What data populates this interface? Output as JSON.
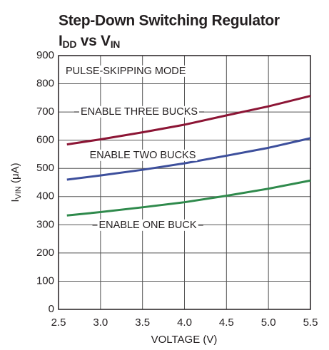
{
  "chart_data": {
    "type": "line",
    "title": "Step-Down Switching Regulator",
    "subtitle_parts": [
      "I",
      "DD",
      " vs V",
      "IN"
    ],
    "ylabel_parts": [
      "I",
      "VIN",
      " (μA)"
    ],
    "xlabel": "VOLTAGE (V)",
    "annotations": [
      "PULSE-SKIPPING MODE"
    ],
    "x": [
      2.6,
      3.0,
      3.5,
      4.0,
      4.5,
      5.0,
      5.5
    ],
    "series": [
      {
        "name": "ENABLE THREE BUCKS",
        "color": "#8c1535",
        "values": [
          585,
          603,
          628,
          655,
          688,
          720,
          757
        ]
      },
      {
        "name": "ENABLE TWO BUCKS",
        "color": "#3d4f9c",
        "values": [
          460,
          475,
          495,
          518,
          545,
          573,
          607
        ]
      },
      {
        "name": "ENABLE ONE BUCK",
        "color": "#2f8a4c",
        "values": [
          333,
          345,
          362,
          380,
          403,
          428,
          457
        ]
      }
    ],
    "xlim": [
      2.5,
      5.5
    ],
    "xticks": [
      2.5,
      {
        "value": 3,
        "label": "3.0"
      },
      3.5,
      {
        "value": 4,
        "label": "4.0"
      },
      4.5,
      {
        "value": 5,
        "label": "5.0"
      },
      5.5
    ],
    "ylim": [
      0,
      900
    ],
    "yticks": [
      0,
      100,
      200,
      300,
      400,
      500,
      600,
      700,
      800,
      900
    ],
    "grid": true
  }
}
